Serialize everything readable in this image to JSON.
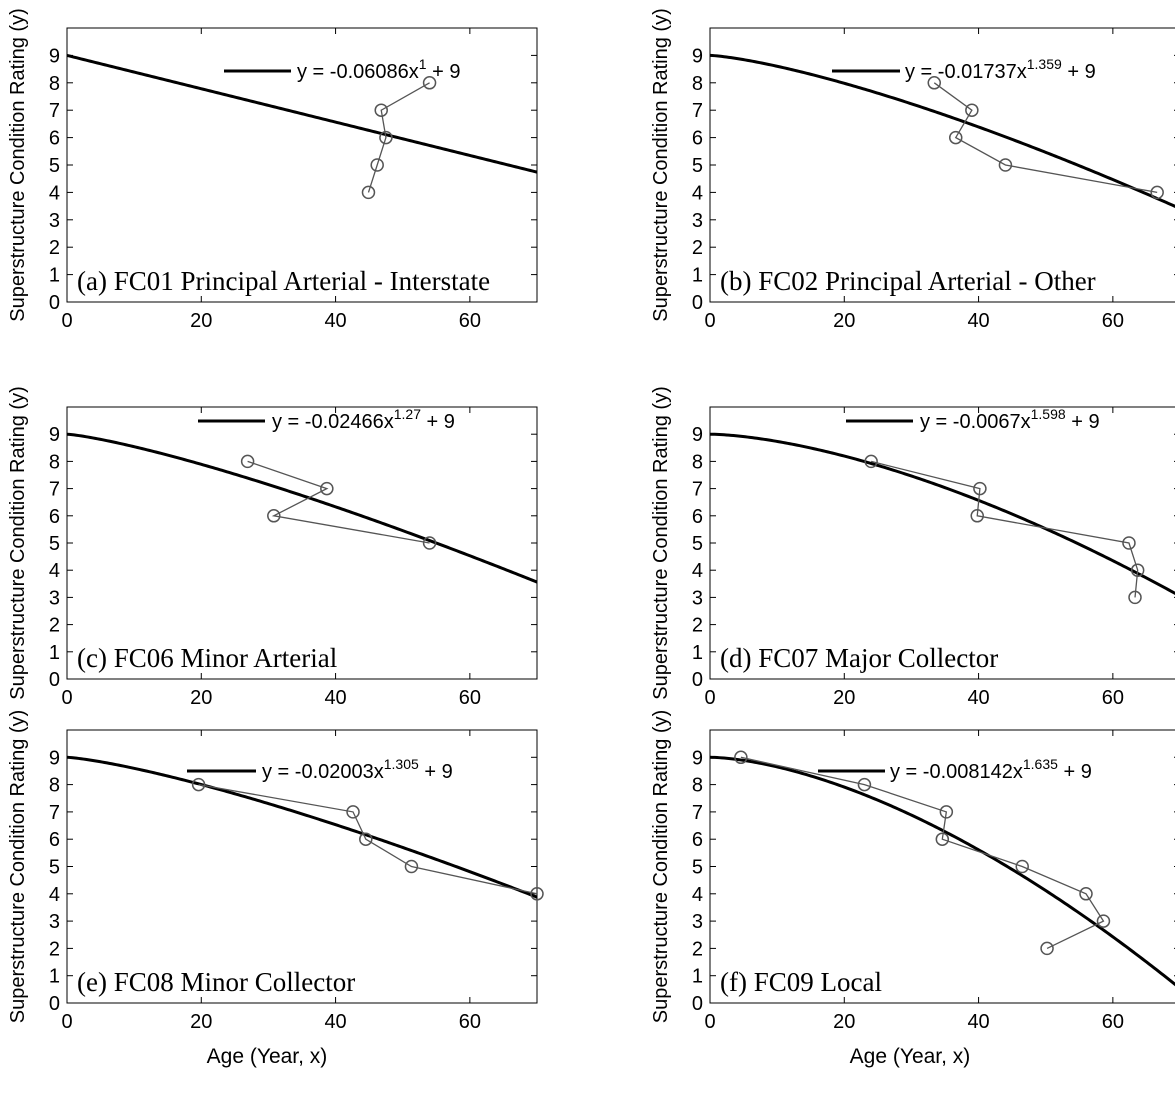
{
  "chart_data": [
    {
      "type": "scatter",
      "panel_label": "(a) FC01 Principal Arterial - Interstate",
      "xlabel": "",
      "ylabel": "Superstructure Condition Rating (y)",
      "xlim": [
        0,
        70
      ],
      "ylim": [
        0,
        10
      ],
      "x_ticks": [
        "0",
        "20",
        "40",
        "60"
      ],
      "y_ticks": [
        "0",
        "1",
        "2",
        "3",
        "4",
        "5",
        "6",
        "7",
        "8",
        "9"
      ],
      "legend": {
        "position": "top-right",
        "prefix": "y = -0.06086x",
        "exponent": "1",
        "suffix": " + 9"
      },
      "fit": {
        "a": 0.06086,
        "b": 1,
        "c": 9
      },
      "series": [
        {
          "x": [
            54,
            46.8,
            47.5,
            46.2,
            44.9
          ],
          "y": [
            8,
            7,
            6,
            5,
            4
          ]
        }
      ]
    },
    {
      "type": "scatter",
      "panel_label": "(b) FC02 Principal Arterial - Other",
      "xlabel": "",
      "ylabel": "Superstructure Condition Rating (y)",
      "xlim": [
        0,
        70
      ],
      "ylim": [
        0,
        10
      ],
      "x_ticks": [
        "0",
        "20",
        "40",
        "60"
      ],
      "y_ticks": [
        "0",
        "1",
        "2",
        "3",
        "4",
        "5",
        "6",
        "7",
        "8",
        "9"
      ],
      "legend": {
        "position": "top-right",
        "prefix": "y = -0.01737x",
        "exponent": "1.359",
        "suffix": " + 9"
      },
      "fit": {
        "a": 0.01737,
        "b": 1.359,
        "c": 9
      },
      "series": [
        {
          "x": [
            33.4,
            39,
            36.6,
            44,
            66.6
          ],
          "y": [
            8,
            7,
            6,
            5,
            4
          ]
        }
      ]
    },
    {
      "type": "scatter",
      "panel_label": "(c) FC06 Minor Arterial",
      "xlabel": "",
      "ylabel": "Superstructure Condition Rating (y)",
      "xlim": [
        0,
        70
      ],
      "ylim": [
        0,
        10
      ],
      "x_ticks": [
        "0",
        "20",
        "40",
        "60"
      ],
      "y_ticks": [
        "0",
        "1",
        "2",
        "3",
        "4",
        "5",
        "6",
        "7",
        "8",
        "9"
      ],
      "legend": {
        "position": "top-right",
        "prefix": "y = -0.02466x",
        "exponent": "1.27",
        "suffix": " + 9"
      },
      "fit": {
        "a": 0.02466,
        "b": 1.27,
        "c": 9
      },
      "series": [
        {
          "x": [
            26.9,
            38.7,
            30.8,
            54
          ],
          "y": [
            8,
            7,
            6,
            5
          ]
        }
      ]
    },
    {
      "type": "scatter",
      "panel_label": "(d) FC07 Major Collector",
      "xlabel": "",
      "ylabel": "Superstructure Condition Rating (y)",
      "xlim": [
        0,
        70
      ],
      "ylim": [
        0,
        10
      ],
      "x_ticks": [
        "0",
        "20",
        "40",
        "60"
      ],
      "y_ticks": [
        "0",
        "1",
        "2",
        "3",
        "4",
        "5",
        "6",
        "7",
        "8",
        "9"
      ],
      "legend": {
        "position": "top-right",
        "prefix": "y = -0.0067x",
        "exponent": "1.598",
        "suffix": " + 9"
      },
      "fit": {
        "a": 0.0067,
        "b": 1.598,
        "c": 9
      },
      "series": [
        {
          "x": [
            24,
            40.2,
            39.8,
            62.4,
            63.7,
            63.3
          ],
          "y": [
            8,
            7,
            6,
            5,
            4,
            3
          ]
        }
      ]
    },
    {
      "type": "scatter",
      "panel_label": "(e) FC08 Minor Collector",
      "xlabel": "Age (Year, x)",
      "ylabel": "Superstructure Condition Rating (y)",
      "xlim": [
        0,
        70
      ],
      "ylim": [
        0,
        10
      ],
      "x_ticks": [
        "0",
        "20",
        "40",
        "60"
      ],
      "y_ticks": [
        "0",
        "1",
        "2",
        "3",
        "4",
        "5",
        "6",
        "7",
        "8",
        "9"
      ],
      "legend": {
        "position": "top-right",
        "prefix": "y = -0.02003x",
        "exponent": "1.305",
        "suffix": " + 9"
      },
      "fit": {
        "a": 0.02003,
        "b": 1.305,
        "c": 9
      },
      "series": [
        {
          "x": [
            19.6,
            42.6,
            44.5,
            51.3,
            70
          ],
          "y": [
            8,
            7,
            6,
            5,
            4
          ]
        }
      ]
    },
    {
      "type": "scatter",
      "panel_label": "(f) FC09 Local",
      "xlabel": "Age (Year, x)",
      "ylabel": "Superstructure Condition Rating (y)",
      "xlim": [
        0,
        70
      ],
      "ylim": [
        0,
        10
      ],
      "x_ticks": [
        "0",
        "20",
        "40",
        "60"
      ],
      "y_ticks": [
        "0",
        "1",
        "2",
        "3",
        "4",
        "5",
        "6",
        "7",
        "8",
        "9"
      ],
      "legend": {
        "position": "top-right",
        "prefix": "y = -0.008142x",
        "exponent": "1.635",
        "suffix": " + 9"
      },
      "fit": {
        "a": 0.008142,
        "b": 1.635,
        "c": 9
      },
      "series": [
        {
          "x": [
            4.6,
            23,
            35.2,
            34.6,
            46.5,
            56,
            58.6,
            50.2
          ],
          "y": [
            9,
            8,
            7,
            6,
            5,
            4,
            3,
            2
          ]
        }
      ]
    }
  ]
}
